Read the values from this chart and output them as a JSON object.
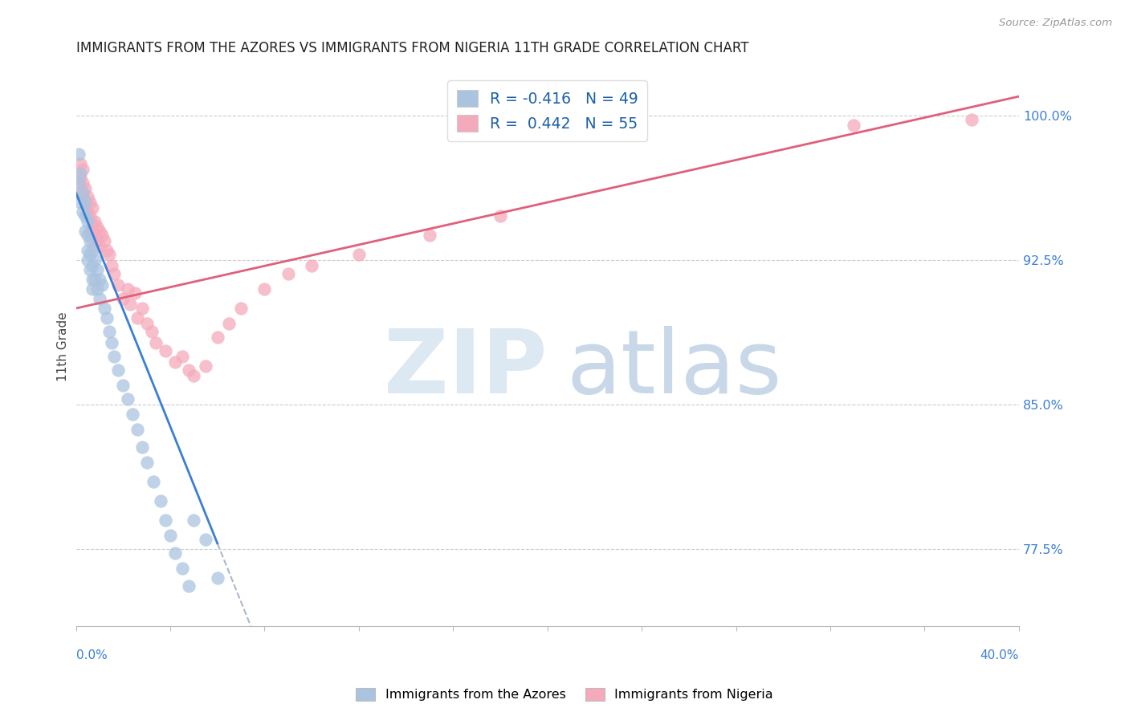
{
  "title": "IMMIGRANTS FROM THE AZORES VS IMMIGRANTS FROM NIGERIA 11TH GRADE CORRELATION CHART",
  "source": "Source: ZipAtlas.com",
  "ylabel": "11th Grade",
  "right_yticks": [
    1.0,
    0.925,
    0.85,
    0.775
  ],
  "right_yticklabels": [
    "100.0%",
    "92.5%",
    "85.0%",
    "77.5%"
  ],
  "legend_r1": "R = -0.416",
  "legend_n1": "N = 49",
  "legend_r2": "R =  0.442",
  "legend_n2": "N = 55",
  "azores_color": "#aac4e0",
  "nigeria_color": "#f5aabb",
  "azores_line_color": "#3a7fd5",
  "nigeria_line_color": "#e0607a",
  "dashed_line_color": "#aab8cc",
  "right_tick_color": "#3a7fd5",
  "xmin": 0.0,
  "xmax": 0.4,
  "ymin": 0.735,
  "ymax": 1.025,
  "azores_x": [
    0.001,
    0.001,
    0.002,
    0.002,
    0.003,
    0.003,
    0.004,
    0.004,
    0.004,
    0.005,
    0.005,
    0.005,
    0.005,
    0.006,
    0.006,
    0.006,
    0.007,
    0.007,
    0.007,
    0.007,
    0.008,
    0.008,
    0.009,
    0.009,
    0.01,
    0.01,
    0.011,
    0.012,
    0.013,
    0.014,
    0.015,
    0.016,
    0.018,
    0.02,
    0.022,
    0.024,
    0.026,
    0.028,
    0.03,
    0.033,
    0.036,
    0.038,
    0.04,
    0.042,
    0.045,
    0.048,
    0.05,
    0.055,
    0.06
  ],
  "azores_y": [
    0.98,
    0.965,
    0.97,
    0.955,
    0.96,
    0.95,
    0.955,
    0.948,
    0.94,
    0.945,
    0.938,
    0.93,
    0.925,
    0.935,
    0.928,
    0.92,
    0.93,
    0.922,
    0.915,
    0.91,
    0.925,
    0.915,
    0.92,
    0.91,
    0.915,
    0.905,
    0.912,
    0.9,
    0.895,
    0.888,
    0.882,
    0.875,
    0.868,
    0.86,
    0.853,
    0.845,
    0.837,
    0.828,
    0.82,
    0.81,
    0.8,
    0.79,
    0.782,
    0.773,
    0.765,
    0.756,
    0.79,
    0.78,
    0.76
  ],
  "nigeria_x": [
    0.001,
    0.002,
    0.002,
    0.003,
    0.003,
    0.003,
    0.004,
    0.004,
    0.005,
    0.005,
    0.006,
    0.006,
    0.006,
    0.007,
    0.007,
    0.007,
    0.008,
    0.008,
    0.009,
    0.009,
    0.01,
    0.01,
    0.011,
    0.012,
    0.013,
    0.014,
    0.015,
    0.016,
    0.018,
    0.02,
    0.022,
    0.023,
    0.025,
    0.026,
    0.028,
    0.03,
    0.032,
    0.034,
    0.038,
    0.042,
    0.045,
    0.048,
    0.05,
    0.055,
    0.06,
    0.065,
    0.07,
    0.08,
    0.09,
    0.1,
    0.12,
    0.15,
    0.18,
    0.33,
    0.38
  ],
  "nigeria_y": [
    0.96,
    0.968,
    0.975,
    0.965,
    0.972,
    0.958,
    0.962,
    0.955,
    0.958,
    0.95,
    0.955,
    0.948,
    0.94,
    0.952,
    0.944,
    0.936,
    0.945,
    0.938,
    0.942,
    0.935,
    0.94,
    0.932,
    0.938,
    0.935,
    0.93,
    0.928,
    0.922,
    0.918,
    0.912,
    0.905,
    0.91,
    0.902,
    0.908,
    0.895,
    0.9,
    0.892,
    0.888,
    0.882,
    0.878,
    0.872,
    0.875,
    0.868,
    0.865,
    0.87,
    0.885,
    0.892,
    0.9,
    0.91,
    0.918,
    0.922,
    0.928,
    0.938,
    0.948,
    0.995,
    0.998
  ],
  "az_line_x0": 0.0,
  "az_line_x1": 0.06,
  "az_line_y0": 0.96,
  "az_line_y1": 0.778,
  "ng_line_x0": 0.0,
  "ng_line_x1": 0.4,
  "ng_line_y0": 0.9,
  "ng_line_y1": 1.01
}
